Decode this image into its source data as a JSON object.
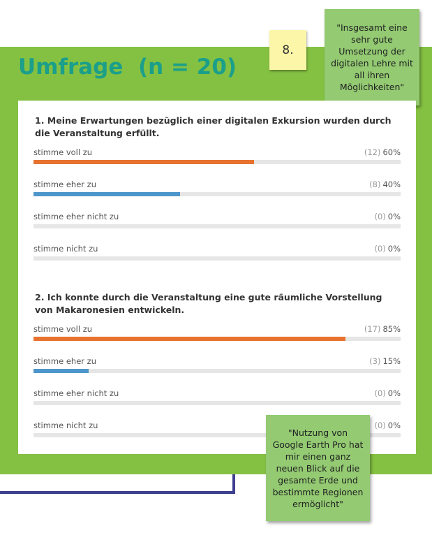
{
  "title": "Umfrage  (n = 20)",
  "page_number": "8.",
  "quotes": {
    "top": "\"Insgesamt eine sehr gute Umsetzung der digitalen Lehre mit all ihren Möglichkeiten\"",
    "bottom": "\"Nutzung von Google Earth Pro hat mir einen ganz neuen Blick auf die gesamte Erde und bestimmte Regionen ermöglicht\""
  },
  "colors": {
    "panel": "#84c142",
    "title": "#1b9f8a",
    "bar_primary": "#e87330",
    "bar_secondary": "#4d96cb",
    "track": "#e6e6e6",
    "note": "#93ca72",
    "page_note": "#fbf6a8"
  },
  "chart_data": [
    {
      "type": "bar",
      "title": "1. Meine Erwartungen bezüglich einer digitalen Exkursion wurden durch die Veranstaltung erfüllt.",
      "categories": [
        "stimme voll zu",
        "stimme eher zu",
        "stimme eher nicht zu",
        "stimme nicht zu"
      ],
      "counts": [
        "(12)",
        "(8)",
        "(0)",
        "(0)"
      ],
      "percent_labels": [
        "60%",
        "40%",
        "0%",
        "0%"
      ],
      "values": [
        60,
        40,
        0,
        0
      ],
      "xlim": [
        0,
        100
      ]
    },
    {
      "type": "bar",
      "title": "2. Ich konnte durch die Veranstaltung eine gute räumliche Vorstellung von Makaronesien entwickeln.",
      "categories": [
        "stimme voll zu",
        "stimme eher zu",
        "stimme eher nicht zu",
        "stimme nicht zu"
      ],
      "counts": [
        "(17)",
        "(3)",
        "(0)",
        "(0)"
      ],
      "percent_labels": [
        "85%",
        "15%",
        "0%",
        "0%"
      ],
      "values": [
        85,
        15,
        0,
        0
      ],
      "xlim": [
        0,
        100
      ]
    }
  ]
}
